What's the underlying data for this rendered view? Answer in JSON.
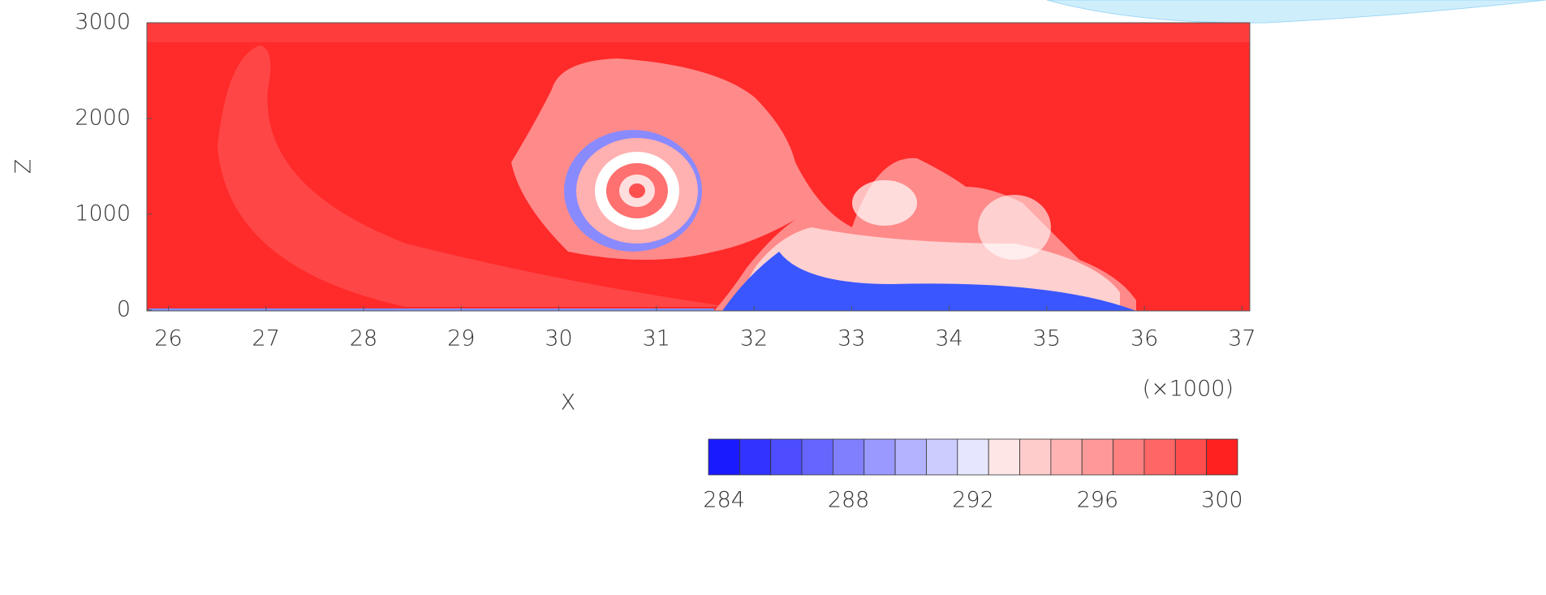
{
  "chart_data": {
    "type": "contour",
    "xlabel": "X",
    "ylabel": "Z",
    "x_multiplier": "(×1000)",
    "xlim": [
      25.78,
      37.08
    ],
    "xticks": [
      26,
      27,
      28,
      29,
      30,
      31,
      32,
      33,
      34,
      35,
      36,
      37
    ],
    "ylim": [
      -10,
      3000
    ],
    "yticks": [
      0,
      1000,
      2000,
      3000
    ],
    "colorbar": {
      "lim": [
        283.5,
        300.5
      ],
      "ticks": [
        284,
        288,
        292,
        296,
        300
      ],
      "colors": [
        "#1a1aff",
        "#3333ff",
        "#4d4dff",
        "#6666ff",
        "#8080ff",
        "#9999ff",
        "#b3b3ff",
        "#ccccff",
        "#e6e6ff",
        "#ffe6e6",
        "#ffcccc",
        "#ffb3b3",
        "#ff9999",
        "#ff8080",
        "#ff6666",
        "#ff4d4d",
        "#ff2020"
      ]
    }
  }
}
